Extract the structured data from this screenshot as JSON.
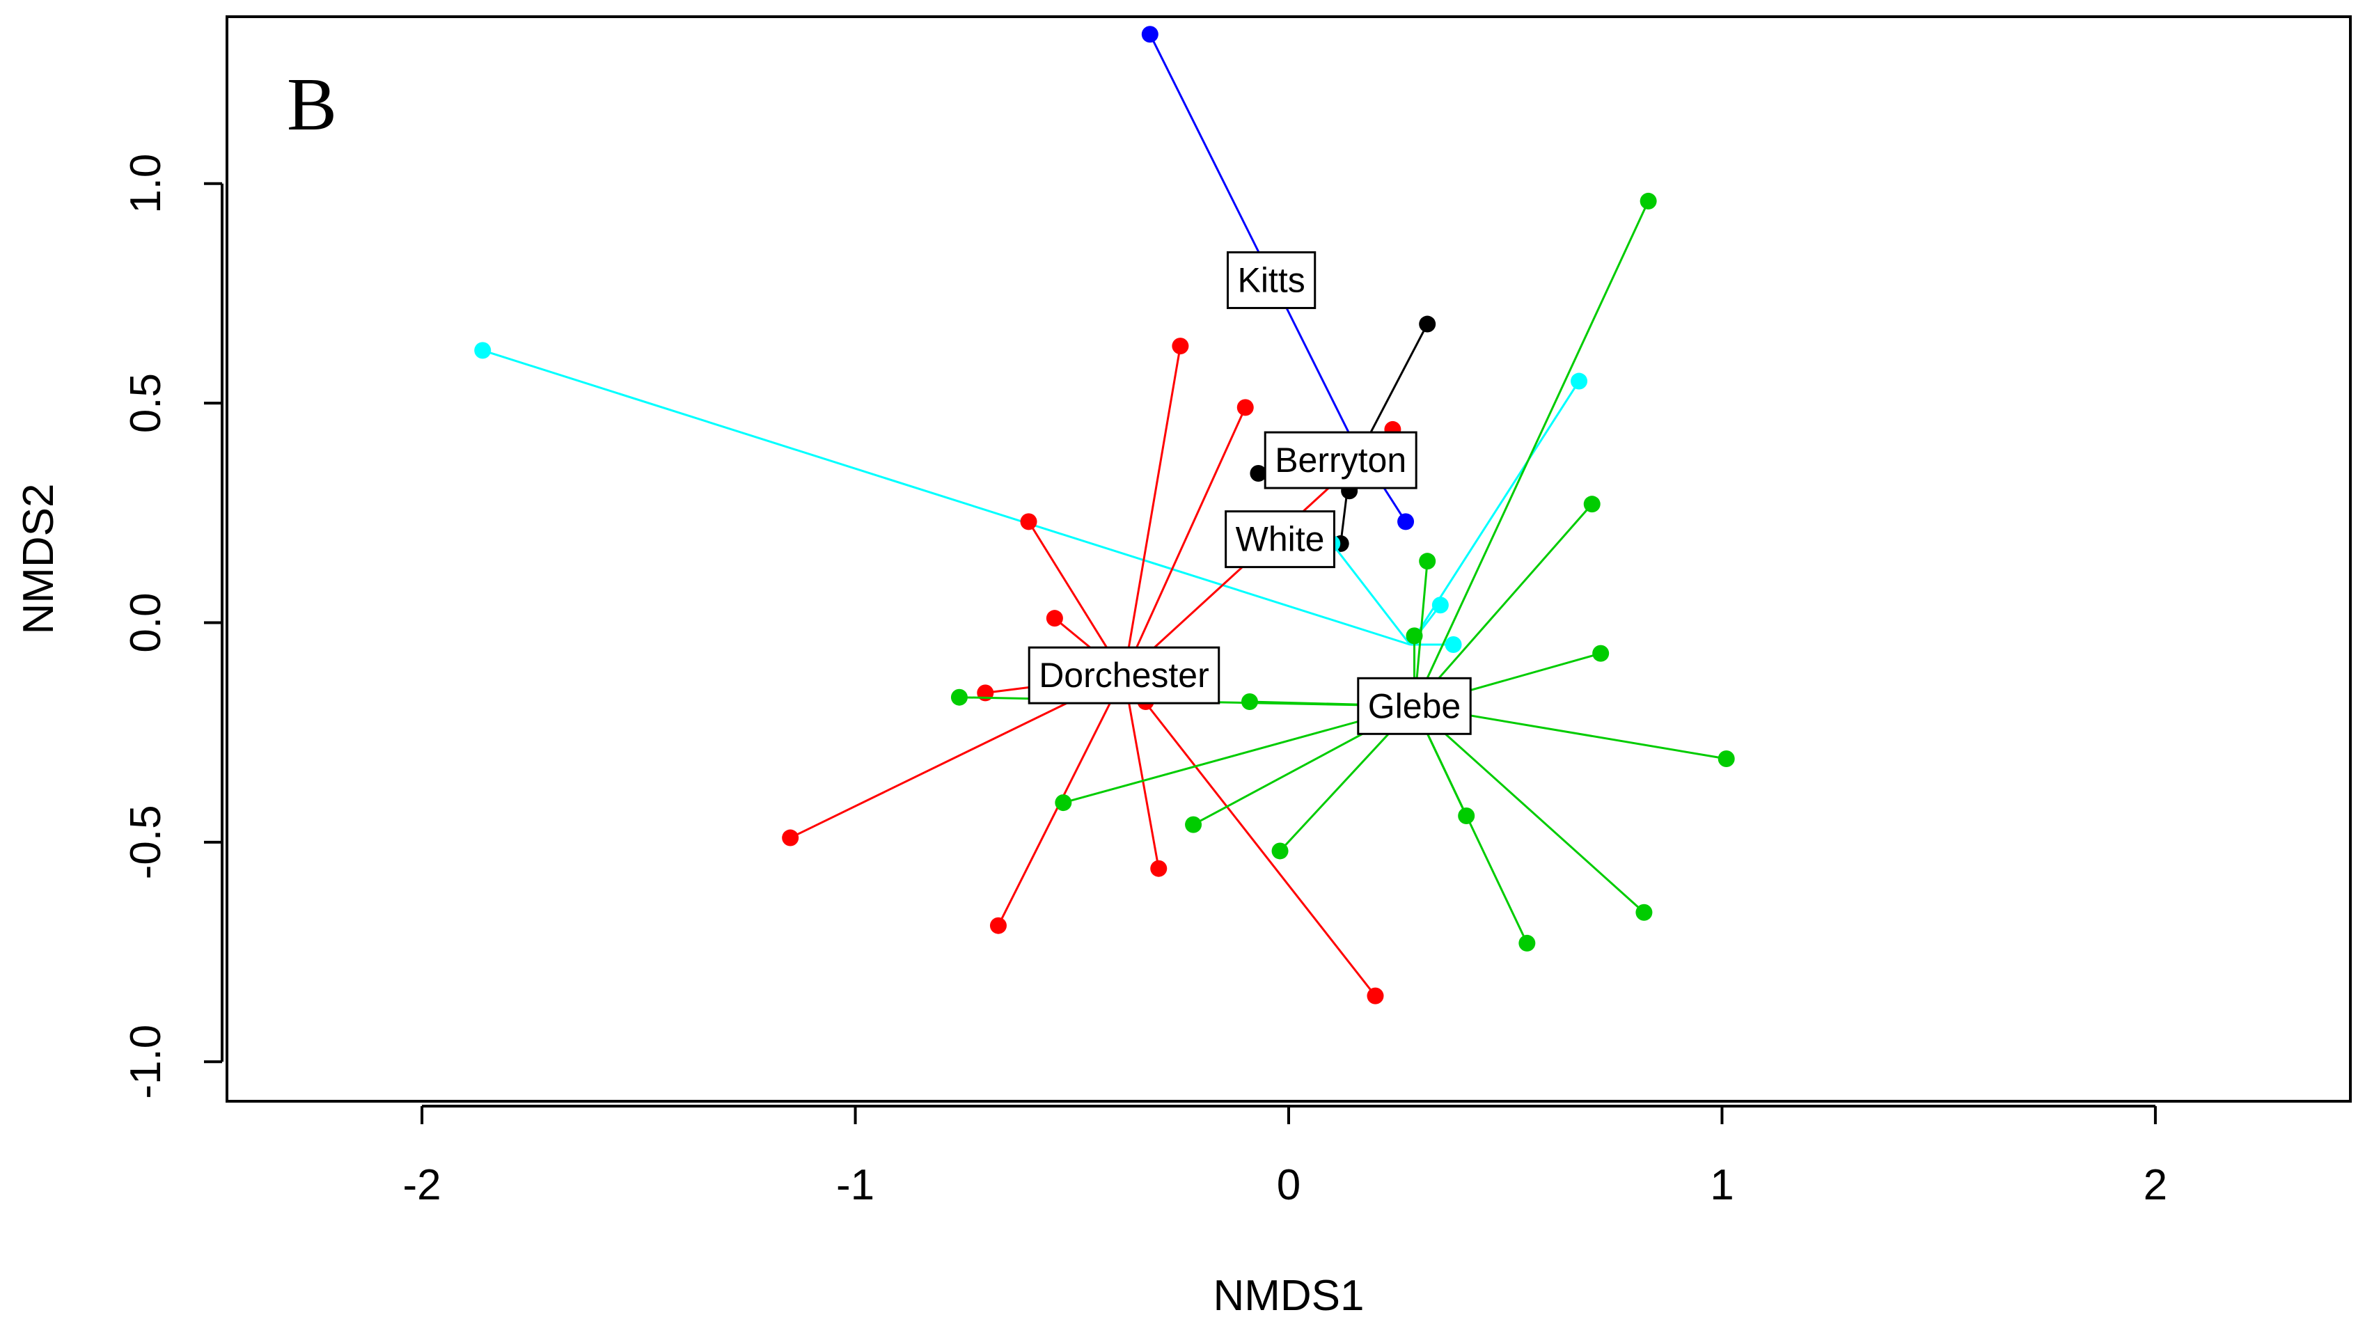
{
  "chart_data": {
    "type": "scatter",
    "subtype": "nmds-spider",
    "panel_label": "B",
    "xlabel": "NMDS1",
    "ylabel": "NMDS2",
    "xlim": [
      -2.45,
      2.45
    ],
    "ylim": [
      -1.09,
      1.38
    ],
    "xticks": [
      -2,
      -1,
      0,
      1,
      2
    ],
    "xtick_labels": [
      "-2",
      "-1",
      "0",
      "1",
      "2"
    ],
    "yticks": [
      -1.0,
      -0.5,
      0.0,
      0.5,
      1.0
    ],
    "ytick_labels": [
      "-1.0",
      "-0.5",
      "0.0",
      "0.5",
      "1.0"
    ],
    "grid": false,
    "series": [
      {
        "name": "Kitts",
        "color": "#0000ff",
        "centroid": [
          0.14,
          0.43
        ],
        "label_at": [
          -0.04,
          0.78
        ],
        "points": [
          [
            -0.32,
            1.34
          ],
          [
            0.27,
            0.23
          ]
        ]
      },
      {
        "name": "Berryton",
        "color": "#000000",
        "centroid": [
          0.14,
          0.34
        ],
        "label_at": [
          0.12,
          0.37
        ],
        "points": [
          [
            0.32,
            0.68
          ],
          [
            -0.07,
            0.34
          ],
          [
            0.14,
            0.3
          ],
          [
            0.12,
            0.18
          ]
        ]
      },
      {
        "name": "White",
        "color": "#00ffff",
        "centroid": [
          0.28,
          -0.05
        ],
        "label_at": [
          -0.02,
          0.19
        ],
        "points": [
          [
            -1.86,
            0.62
          ],
          [
            0.67,
            0.55
          ],
          [
            0.35,
            0.04
          ],
          [
            0.38,
            -0.05
          ],
          [
            0.1,
            0.18
          ]
        ]
      },
      {
        "name": "Dorchester",
        "color": "#ff0000",
        "centroid": [
          -0.38,
          -0.12
        ],
        "label_at": [
          -0.38,
          -0.12
        ],
        "points": [
          [
            -0.25,
            0.63
          ],
          [
            -0.1,
            0.49
          ],
          [
            0.24,
            0.44
          ],
          [
            -0.6,
            0.23
          ],
          [
            -0.54,
            0.01
          ],
          [
            -0.7,
            -0.16
          ],
          [
            -0.33,
            -0.18
          ],
          [
            -1.15,
            -0.49
          ],
          [
            -0.3,
            -0.56
          ],
          [
            -0.67,
            -0.69
          ],
          [
            0.2,
            -0.85
          ]
        ]
      },
      {
        "name": "Glebe",
        "color": "#00cc00",
        "centroid": [
          0.29,
          -0.19
        ],
        "label_at": [
          0.29,
          -0.19
        ],
        "points": [
          [
            0.83,
            0.96
          ],
          [
            0.7,
            0.27
          ],
          [
            0.32,
            0.14
          ],
          [
            0.29,
            -0.03
          ],
          [
            0.72,
            -0.07
          ],
          [
            -0.76,
            -0.17
          ],
          [
            -0.09,
            -0.18
          ],
          [
            1.01,
            -0.31
          ],
          [
            -0.52,
            -0.41
          ],
          [
            -0.22,
            -0.46
          ],
          [
            0.41,
            -0.44
          ],
          [
            -0.02,
            -0.52
          ],
          [
            0.82,
            -0.66
          ],
          [
            0.55,
            -0.73
          ]
        ]
      }
    ]
  }
}
